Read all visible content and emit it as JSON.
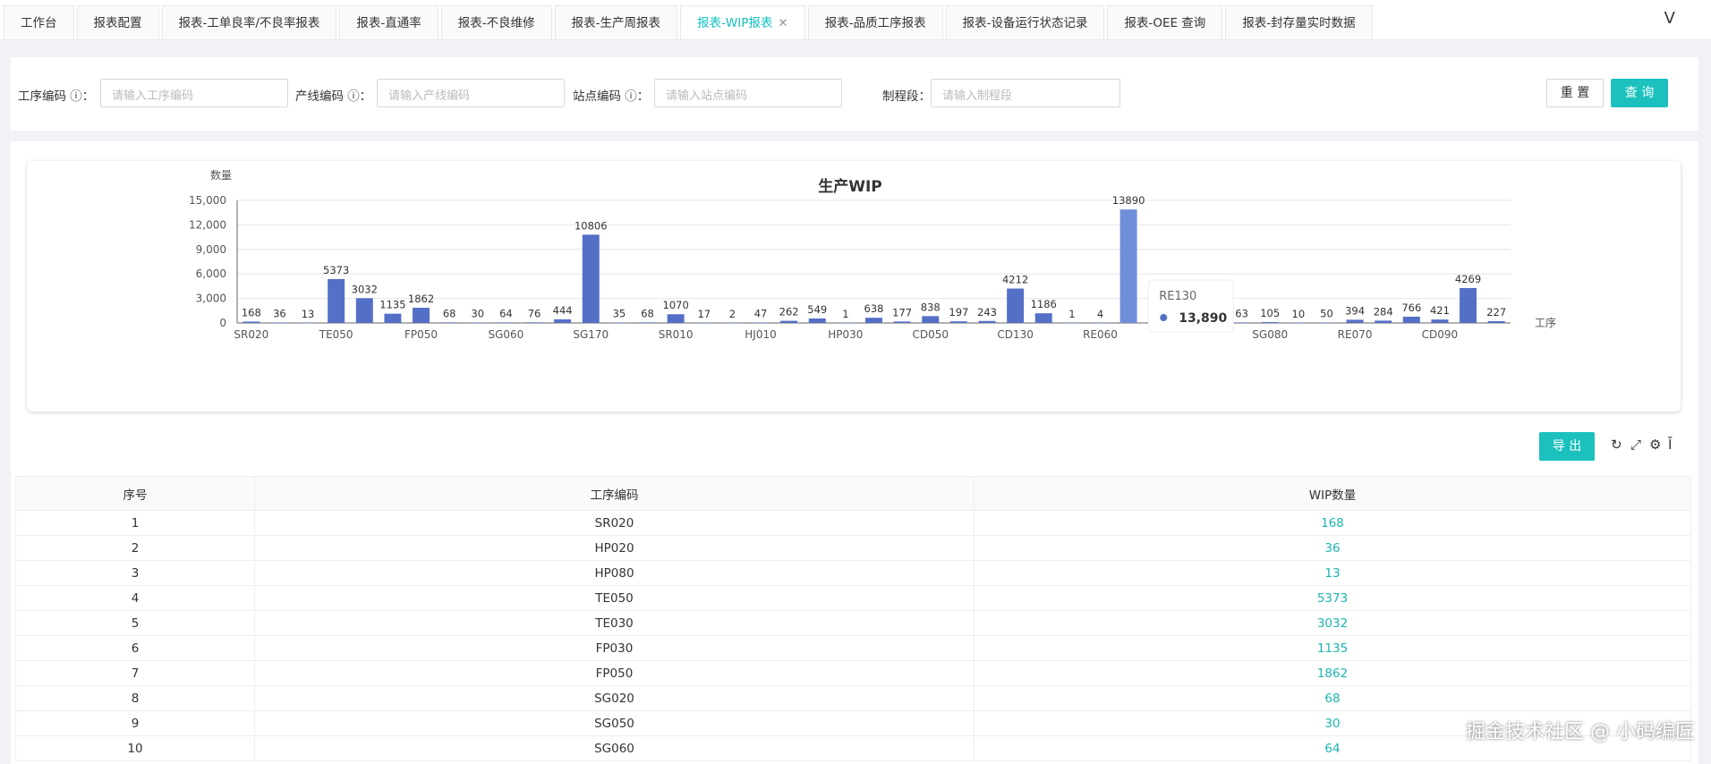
{
  "tabs": [
    {
      "label": "工作台"
    },
    {
      "label": "报表配置"
    },
    {
      "label": "报表-工单良率/不良率报表"
    },
    {
      "label": "报表-直通率"
    },
    {
      "label": "报表-不良维修"
    },
    {
      "label": "报表-生产周报表"
    },
    {
      "label": "报表-WIP报表",
      "active": true
    },
    {
      "label": "报表-品质工序报表"
    },
    {
      "label": "报表-设备运行状态记录"
    },
    {
      "label": "报表-OEE 查询"
    },
    {
      "label": "报表-封存量实时数据"
    }
  ],
  "tab_more": "V",
  "filter": {
    "op_label": "工序编码 ⓘ：",
    "op_placeholder": "请输入工序编码",
    "line_label": "产线编码 ⓘ：",
    "line_placeholder": "请输入产线编码",
    "station_label": "站点编码 ⓘ：",
    "station_placeholder": "请输入站点编码",
    "stage_label": "制程段：",
    "stage_placeholder": "请输入制程段",
    "reset": "重 置",
    "query": "查 询"
  },
  "chart_data": {
    "type": "bar",
    "title": "生产WIP",
    "ylabel": "数量",
    "xlabel": "工序",
    "ylim": [
      0,
      15000
    ],
    "yticks": [
      "0",
      "3,000",
      "6,000",
      "9,000",
      "12,000",
      "15,000"
    ],
    "categories": [
      "SR020",
      "HP020",
      "HP080",
      "TE050",
      "TE030",
      "FP030",
      "FP050",
      "SG020",
      "SG050",
      "SG060",
      "",
      "",
      "SG170",
      "",
      "",
      "SR010",
      "",
      "",
      "HJ010",
      "",
      "",
      "HP030",
      "",
      "",
      "CD050",
      "",
      "",
      "CD130",
      "",
      "",
      "RE060",
      "RE130",
      "",
      "",
      "",
      "",
      "SG080",
      "",
      "",
      "RE070",
      "",
      "",
      "CD090",
      "",
      ""
    ],
    "values": [
      168,
      36,
      13,
      5373,
      3032,
      1135,
      1862,
      68,
      30,
      64,
      76,
      444,
      10806,
      35,
      68,
      1070,
      17,
      2,
      47,
      262,
      549,
      1,
      638,
      177,
      838,
      197,
      243,
      4212,
      1186,
      1,
      4,
      13890,
      null,
      null,
      null,
      63,
      105,
      10,
      50,
      394,
      284,
      766,
      421,
      4269,
      227
    ],
    "bar_color": "#5470c6",
    "highlight_color": "#6f8fdb",
    "grid": true,
    "tooltip": {
      "category": "RE130",
      "value": "13,890"
    }
  },
  "toolbar": {
    "export": "导 出"
  },
  "table": {
    "headers": [
      "序号",
      "工序编码",
      "WIP数量"
    ],
    "rows": [
      [
        "1",
        "SR020",
        "168"
      ],
      [
        "2",
        "HP020",
        "36"
      ],
      [
        "3",
        "HP080",
        "13"
      ],
      [
        "4",
        "TE050",
        "5373"
      ],
      [
        "5",
        "TE030",
        "3032"
      ],
      [
        "6",
        "FP030",
        "1135"
      ],
      [
        "7",
        "FP050",
        "1862"
      ],
      [
        "8",
        "SG020",
        "68"
      ],
      [
        "9",
        "SG050",
        "30"
      ],
      [
        "10",
        "SG060",
        "64"
      ]
    ]
  },
  "watermark": "掘金技术社区 @ 小码编匠"
}
